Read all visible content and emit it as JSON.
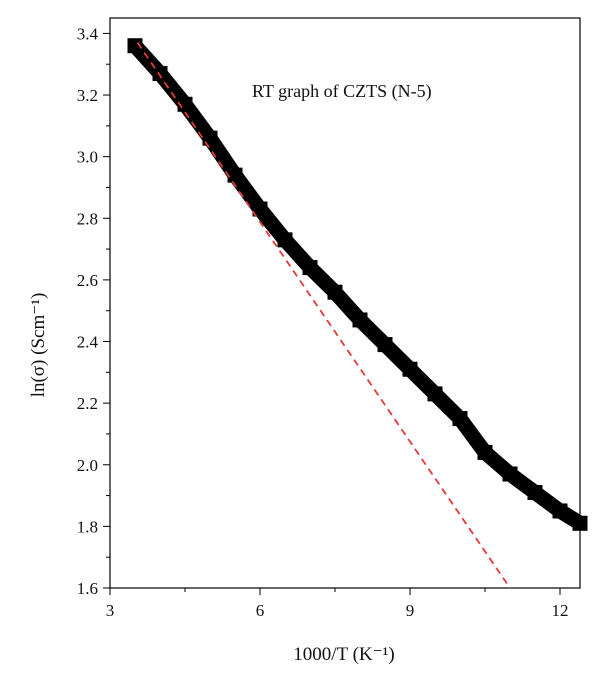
{
  "chart_data": {
    "type": "scatter",
    "title": "",
    "annotation": "RT graph of CZTS (N-5)",
    "xlabel": "1000/T (K⁻¹)",
    "ylabel": "ln(σ) (Scm⁻¹)",
    "xlim": [
      3,
      12.4
    ],
    "ylim": [
      1.6,
      3.45
    ],
    "x_ticks": [
      3,
      6,
      9,
      12
    ],
    "y_ticks": [
      1.6,
      1.8,
      2.0,
      2.2,
      2.4,
      2.6,
      2.8,
      3.0,
      3.2,
      3.4
    ],
    "y_tick_labels": [
      "1.6",
      "1.8",
      "2.0",
      "2.2",
      "2.4",
      "2.6",
      "2.8",
      "3.0",
      "3.2",
      "3.4"
    ],
    "grid": false,
    "series": [
      {
        "marker": "square",
        "color": "#000000",
        "x": [
          3.5,
          4.0,
          4.5,
          5.0,
          5.5,
          6.0,
          6.5,
          7.0,
          7.5,
          8.0,
          8.5,
          9.0,
          9.5,
          10.0,
          10.5,
          11.0,
          11.5,
          12.0,
          12.4
        ],
        "y": [
          3.36,
          3.27,
          3.17,
          3.06,
          2.94,
          2.83,
          2.73,
          2.64,
          2.56,
          2.47,
          2.39,
          2.31,
          2.23,
          2.15,
          2.04,
          1.97,
          1.91,
          1.85,
          1.81
        ]
      },
      {
        "style": "dashed",
        "color": "#e23a3a",
        "x": [
          3.55,
          11.0
        ],
        "y": [
          3.37,
          1.6
        ]
      }
    ]
  }
}
